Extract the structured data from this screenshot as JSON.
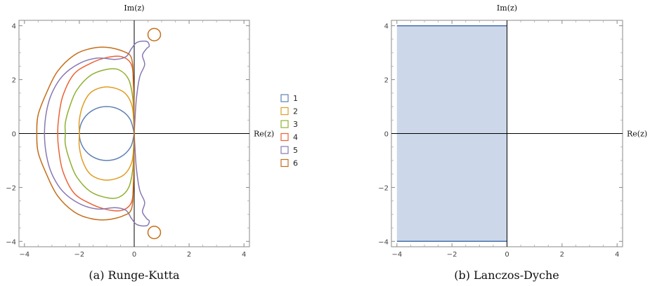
{
  "colors": {
    "series": [
      "#5E81B5",
      "#E19C24",
      "#8FB032",
      "#EB6235",
      "#8778B3",
      "#C56E1A"
    ],
    "region_fill": "#ccd8ea",
    "region_edge": "#4a72b0",
    "frame": "#888888",
    "axis": "#000000"
  },
  "chart_data": [
    {
      "type": "line",
      "panel": "a",
      "caption": "(a)  Runge-Kutta",
      "xlabel": "Re(z)",
      "ylabel": "Im(z)",
      "xlim": [
        -4.2,
        4.2
      ],
      "ylim": [
        -4.2,
        4.2
      ],
      "xticks": [
        -4,
        -2,
        0,
        2,
        4
      ],
      "yticks": [
        -4,
        -2,
        0,
        2,
        4
      ],
      "legend_position": "right",
      "series": [
        {
          "name": "1",
          "points": [
            [
              0,
              0
            ],
            [
              -0.15,
              0.53
            ],
            [
              -0.5,
              0.87
            ],
            [
              -1,
              1
            ],
            [
              -1.5,
              0.87
            ],
            [
              -1.87,
              0.5
            ],
            [
              -2,
              0
            ],
            [
              -1.87,
              -0.5
            ],
            [
              -1.5,
              -0.87
            ],
            [
              -1,
              -1
            ],
            [
              -0.5,
              -0.87
            ],
            [
              -0.13,
              -0.5
            ],
            [
              0,
              0
            ]
          ]
        },
        {
          "name": "2",
          "points": [
            [
              0,
              0
            ],
            [
              -0.02,
              0.5
            ],
            [
              -0.1,
              1.1
            ],
            [
              -0.4,
              1.55
            ],
            [
              -1,
              1.73
            ],
            [
              -1.55,
              1.55
            ],
            [
              -1.85,
              1.1
            ],
            [
              -2,
              0.5
            ],
            [
              -2,
              0
            ],
            [
              -2,
              -0.5
            ],
            [
              -1.85,
              -1.1
            ],
            [
              -1.55,
              -1.55
            ],
            [
              -1,
              -1.73
            ],
            [
              -0.4,
              -1.55
            ],
            [
              -0.1,
              -1.1
            ],
            [
              -0.02,
              -0.5
            ],
            [
              0,
              0
            ]
          ]
        },
        {
          "name": "3",
          "points": [
            [
              0,
              0
            ],
            [
              -0.02,
              0.6
            ],
            [
              -0.05,
              1.3
            ],
            [
              -0.2,
              2.0
            ],
            [
              -0.55,
              2.36
            ],
            [
              -1,
              2.38
            ],
            [
              -1.6,
              2.15
            ],
            [
              -2.1,
              1.6
            ],
            [
              -2.35,
              1.0
            ],
            [
              -2.51,
              0.4
            ],
            [
              -2.51,
              0
            ],
            [
              -2.51,
              -0.4
            ],
            [
              -2.35,
              -1.0
            ],
            [
              -2.1,
              -1.6
            ],
            [
              -1.6,
              -2.15
            ],
            [
              -1,
              -2.38
            ],
            [
              -0.55,
              -2.36
            ],
            [
              -0.2,
              -2.0
            ],
            [
              -0.05,
              -1.3
            ],
            [
              -0.02,
              -0.6
            ],
            [
              0,
              0
            ]
          ]
        },
        {
          "name": "4",
          "points": [
            [
              0,
              0
            ],
            [
              -0.01,
              0.8
            ],
            [
              -0.03,
              1.8
            ],
            [
              -0.1,
              2.55
            ],
            [
              -0.45,
              2.85
            ],
            [
              -1,
              2.82
            ],
            [
              -1.6,
              2.6
            ],
            [
              -2.2,
              2.2
            ],
            [
              -2.6,
              1.4
            ],
            [
              -2.75,
              0.6
            ],
            [
              -2.79,
              0
            ],
            [
              -2.75,
              -0.6
            ],
            [
              -2.6,
              -1.4
            ],
            [
              -2.2,
              -2.2
            ],
            [
              -1.6,
              -2.6
            ],
            [
              -1,
              -2.82
            ],
            [
              -0.45,
              -2.85
            ],
            [
              -0.1,
              -2.55
            ],
            [
              -0.03,
              -1.8
            ],
            [
              -0.01,
              -0.8
            ],
            [
              0,
              0
            ]
          ]
        },
        {
          "name": "5",
          "points": [
            [
              0,
              0
            ],
            [
              0.02,
              0.4
            ],
            [
              0.08,
              1.3
            ],
            [
              0.2,
              2.1
            ],
            [
              0.38,
              2.55
            ],
            [
              0.3,
              2.9
            ],
            [
              0.45,
              3.15
            ],
            [
              0.55,
              3.25
            ],
            [
              0.45,
              3.42
            ],
            [
              0.1,
              3.38
            ],
            [
              -0.1,
              3.15
            ],
            [
              -0.3,
              2.85
            ],
            [
              -0.7,
              2.75
            ],
            [
              -1.35,
              2.8
            ],
            [
              -2.0,
              2.6
            ],
            [
              -2.6,
              2.15
            ],
            [
              -3.0,
              1.5
            ],
            [
              -3.2,
              0.8
            ],
            [
              -3.27,
              0
            ],
            [
              -3.2,
              -0.8
            ],
            [
              -3.0,
              -1.5
            ],
            [
              -2.6,
              -2.15
            ],
            [
              -2.0,
              -2.6
            ],
            [
              -1.35,
              -2.8
            ],
            [
              -0.7,
              -2.75
            ],
            [
              -0.3,
              -2.85
            ],
            [
              -0.1,
              -3.15
            ],
            [
              0.1,
              -3.38
            ],
            [
              0.45,
              -3.42
            ],
            [
              0.55,
              -3.25
            ],
            [
              0.45,
              -3.15
            ],
            [
              0.3,
              -2.9
            ],
            [
              0.38,
              -2.55
            ],
            [
              0.2,
              -2.1
            ],
            [
              0.08,
              -1.3
            ],
            [
              0.02,
              -0.4
            ],
            [
              0,
              0
            ]
          ]
        },
        {
          "name": "6",
          "points": [
            [
              0,
              0
            ],
            [
              -0.01,
              1.0
            ],
            [
              -0.03,
              2.0
            ],
            [
              -0.1,
              2.8
            ],
            [
              -0.4,
              3.05
            ],
            [
              -1,
              3.2
            ],
            [
              -1.6,
              3.15
            ],
            [
              -2.2,
              2.9
            ],
            [
              -2.8,
              2.3
            ],
            [
              -3.2,
              1.5
            ],
            [
              -3.5,
              0.7
            ],
            [
              -3.55,
              0
            ],
            [
              -3.5,
              -0.7
            ],
            [
              -3.2,
              -1.5
            ],
            [
              -2.8,
              -2.3
            ],
            [
              -2.2,
              -2.9
            ],
            [
              -1.6,
              -3.15
            ],
            [
              -1,
              -3.2
            ],
            [
              -0.4,
              -3.05
            ],
            [
              -0.1,
              -2.8
            ],
            [
              -0.03,
              -2.0
            ],
            [
              -0.01,
              -1.0
            ],
            [
              0,
              0
            ]
          ],
          "islands": [
            {
              "center": [
                0.73,
                3.67
              ],
              "r": 0.23
            },
            {
              "center": [
                0.73,
                -3.67
              ],
              "r": 0.23
            }
          ]
        }
      ]
    },
    {
      "type": "area",
      "panel": "b",
      "caption": "(b)  Lanczos-Dyche",
      "xlabel": "Re(z)",
      "ylabel": "Im(z)",
      "xlim": [
        -4.2,
        4.2
      ],
      "ylim": [
        -4.2,
        4.2
      ],
      "xticks": [
        -4,
        -2,
        0,
        2,
        4
      ],
      "yticks": [
        -4,
        -2,
        0,
        2,
        4
      ],
      "region": {
        "x": [
          -4,
          0
        ],
        "y": [
          -4,
          4
        ]
      }
    }
  ]
}
